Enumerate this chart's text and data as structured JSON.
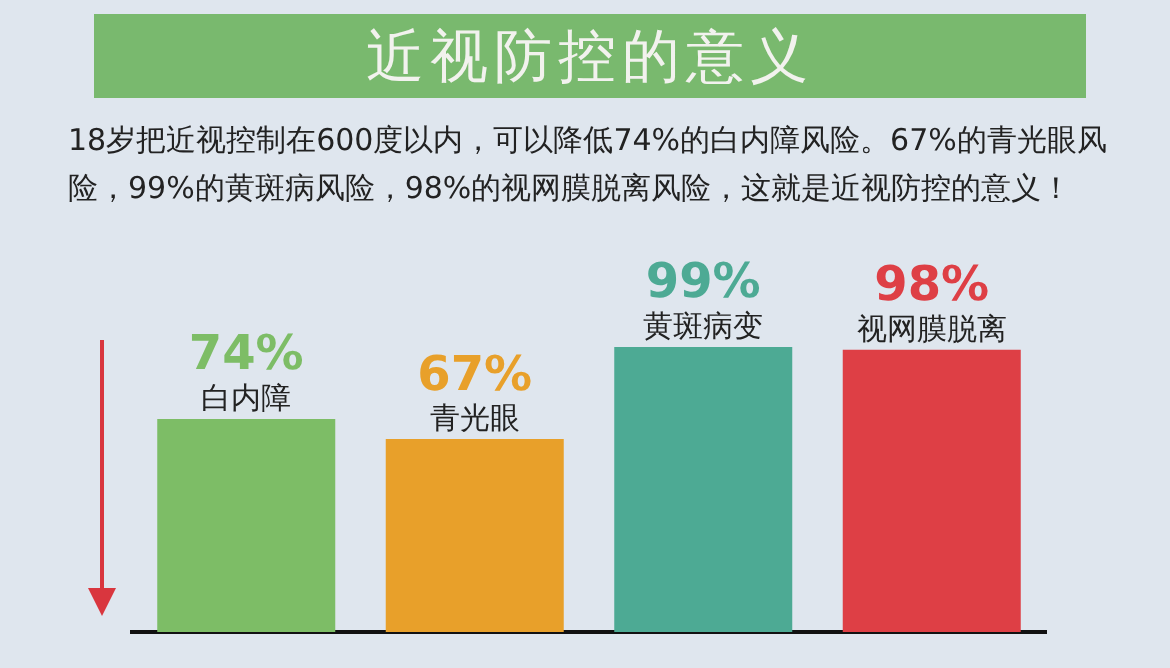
{
  "chart_data": {
    "type": "bar",
    "title": "近视防控的意义",
    "subtitle": "18岁把近视控制在600度以内，可以降低74%的白内障风险。67%的青光眼风险，99%的黄斑病风险，98%的视网膜脱离风险，这就是近视防控的意义！",
    "categories": [
      "白内障",
      "青光眼",
      "黄斑病变",
      "视网膜脱离"
    ],
    "values": [
      74,
      67,
      99,
      98
    ],
    "value_labels": [
      "74%",
      "67%",
      "99%",
      "98%"
    ],
    "colors": [
      "#7dbd66",
      "#e8a02a",
      "#4daa94",
      "#de3f45"
    ],
    "grid": false,
    "tick_labels": false
  }
}
